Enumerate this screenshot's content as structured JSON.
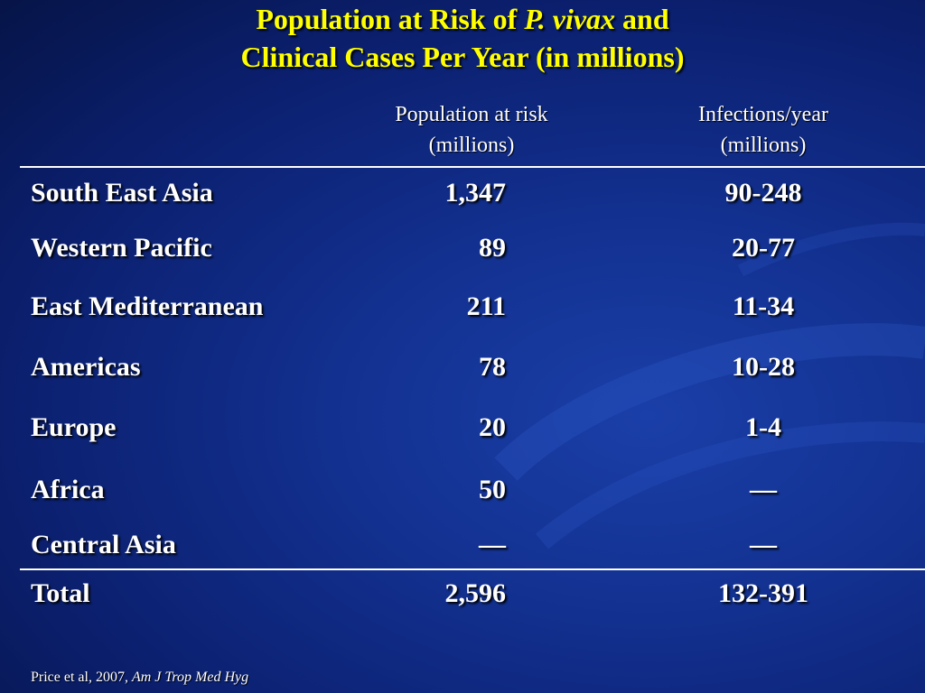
{
  "title": {
    "line1_prefix": "Population at Risk of ",
    "line1_italic": "P. vivax",
    "line1_suffix": " and",
    "line2": "Clinical Cases Per Year (in millions)"
  },
  "table": {
    "headers": {
      "population": [
        "Population at risk",
        "(millions)"
      ],
      "infections": [
        "Infections/year",
        "(millions)"
      ]
    },
    "rows": [
      {
        "region": "South East Asia",
        "population": "1,347",
        "infections": "90-248"
      },
      {
        "region": "Western Pacific",
        "population": "89",
        "infections": "20-77"
      },
      {
        "region": "East Mediterranean",
        "population": "211",
        "infections": "11-34"
      },
      {
        "region": "Americas",
        "population": "78",
        "infections": "10-28"
      },
      {
        "region": "Europe",
        "population": "20",
        "infections": "1-4"
      },
      {
        "region": "Africa",
        "population": "50",
        "infections": "—"
      },
      {
        "region": "Central Asia",
        "population": "—",
        "infections": "—"
      }
    ],
    "total": {
      "region": "Total",
      "population": "2,596",
      "infections": "132-391"
    }
  },
  "citation": {
    "prefix": "Price et al, 2007, ",
    "journal": "Am J Trop Med Hyg"
  },
  "colors": {
    "title": "#ffff00",
    "text": "#ffffff",
    "background": "#12308f"
  }
}
